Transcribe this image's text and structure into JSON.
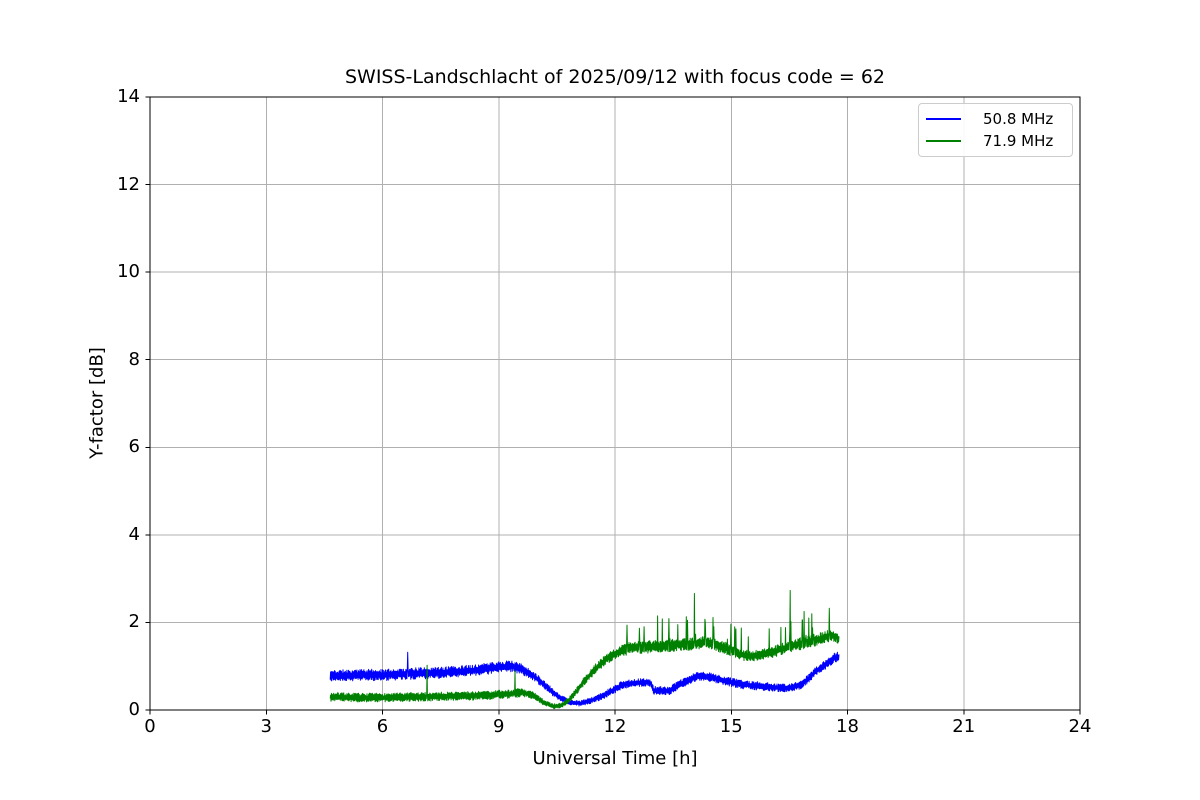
{
  "figure": {
    "background": "#ffffff"
  },
  "chart_data": {
    "type": "line",
    "title": "SWISS-Landschlacht of 2025/09/12 with focus code = 62",
    "xlabel": "Universal Time [h]",
    "ylabel": "Y-factor [dB]",
    "xlim": [
      0,
      24
    ],
    "ylim": [
      0,
      14
    ],
    "xticks": [
      0,
      3,
      6,
      9,
      12,
      15,
      18,
      21,
      24
    ],
    "yticks": [
      0,
      2,
      4,
      6,
      8,
      10,
      12,
      14
    ],
    "grid": true,
    "grid_color": "#b0b0b0",
    "axis_color": "#000000",
    "legend": {
      "position": "upper right"
    },
    "series": [
      {
        "name": "50.8 MHz",
        "color": "#0000ff",
        "seed": 11,
        "x_start": 4.65,
        "x_end": 17.78,
        "keypoints": [
          [
            4.65,
            0.78
          ],
          [
            5.0,
            0.79
          ],
          [
            5.5,
            0.8
          ],
          [
            6.0,
            0.8
          ],
          [
            6.5,
            0.82
          ],
          [
            7.0,
            0.84
          ],
          [
            7.5,
            0.85
          ],
          [
            8.0,
            0.88
          ],
          [
            8.5,
            0.92
          ],
          [
            9.0,
            0.98
          ],
          [
            9.35,
            1.0
          ],
          [
            9.6,
            0.93
          ],
          [
            9.9,
            0.78
          ],
          [
            10.2,
            0.55
          ],
          [
            10.5,
            0.33
          ],
          [
            10.8,
            0.18
          ],
          [
            11.1,
            0.15
          ],
          [
            11.4,
            0.22
          ],
          [
            11.7,
            0.33
          ],
          [
            12.0,
            0.48
          ],
          [
            12.2,
            0.58
          ],
          [
            12.5,
            0.62
          ],
          [
            12.9,
            0.63
          ],
          [
            13.0,
            0.45
          ],
          [
            13.4,
            0.44
          ],
          [
            13.6,
            0.55
          ],
          [
            13.9,
            0.68
          ],
          [
            14.15,
            0.78
          ],
          [
            14.4,
            0.76
          ],
          [
            14.7,
            0.7
          ],
          [
            15.0,
            0.63
          ],
          [
            15.3,
            0.58
          ],
          [
            15.7,
            0.55
          ],
          [
            16.1,
            0.52
          ],
          [
            16.5,
            0.5
          ],
          [
            16.8,
            0.58
          ],
          [
            17.0,
            0.72
          ],
          [
            17.2,
            0.9
          ],
          [
            17.45,
            1.05
          ],
          [
            17.65,
            1.18
          ],
          [
            17.78,
            1.22
          ]
        ],
        "noise": [
          [
            4.65,
            0.13
          ],
          [
            9.3,
            0.13
          ],
          [
            10.3,
            0.09
          ],
          [
            10.9,
            0.06
          ],
          [
            11.5,
            0.07
          ],
          [
            12.0,
            0.09
          ],
          [
            13.0,
            0.09
          ],
          [
            14.0,
            0.1
          ],
          [
            15.0,
            0.1
          ],
          [
            16.5,
            0.09
          ],
          [
            17.3,
            0.1
          ],
          [
            17.78,
            0.12
          ]
        ],
        "burst": null,
        "spikes": [
          [
            6.65,
            1.32
          ]
        ]
      },
      {
        "name": "71.9 MHz",
        "color": "#008000",
        "seed": 7,
        "x_start": 4.65,
        "x_end": 17.78,
        "keypoints": [
          [
            4.65,
            0.3
          ],
          [
            5.5,
            0.28
          ],
          [
            6.5,
            0.29
          ],
          [
            7.5,
            0.31
          ],
          [
            8.5,
            0.33
          ],
          [
            9.2,
            0.36
          ],
          [
            9.6,
            0.4
          ],
          [
            9.9,
            0.33
          ],
          [
            10.15,
            0.18
          ],
          [
            10.4,
            0.08
          ],
          [
            10.6,
            0.1
          ],
          [
            10.8,
            0.22
          ],
          [
            11.0,
            0.42
          ],
          [
            11.2,
            0.65
          ],
          [
            11.5,
            0.95
          ],
          [
            11.8,
            1.18
          ],
          [
            12.1,
            1.33
          ],
          [
            12.4,
            1.42
          ],
          [
            12.8,
            1.44
          ],
          [
            13.2,
            1.46
          ],
          [
            13.6,
            1.5
          ],
          [
            14.0,
            1.5
          ],
          [
            14.3,
            1.55
          ],
          [
            14.6,
            1.48
          ],
          [
            14.9,
            1.4
          ],
          [
            15.2,
            1.28
          ],
          [
            15.5,
            1.22
          ],
          [
            15.8,
            1.27
          ],
          [
            16.1,
            1.33
          ],
          [
            16.4,
            1.42
          ],
          [
            16.7,
            1.5
          ],
          [
            17.0,
            1.55
          ],
          [
            17.3,
            1.63
          ],
          [
            17.55,
            1.7
          ],
          [
            17.7,
            1.68
          ],
          [
            17.78,
            1.6
          ]
        ],
        "noise": [
          [
            4.65,
            0.1
          ],
          [
            9.5,
            0.1
          ],
          [
            10.2,
            0.06
          ],
          [
            10.7,
            0.06
          ],
          [
            11.2,
            0.09
          ],
          [
            11.8,
            0.12
          ],
          [
            12.4,
            0.14
          ],
          [
            13.5,
            0.15
          ],
          [
            14.8,
            0.14
          ],
          [
            15.6,
            0.12
          ],
          [
            16.3,
            0.13
          ],
          [
            17.0,
            0.14
          ],
          [
            17.78,
            0.13
          ]
        ],
        "burst": {
          "range": [
            12.3,
            17.6
          ],
          "p": 0.05,
          "max": 0.5
        },
        "spikes": [
          [
            7.15,
            1.02
          ],
          [
            9.42,
            0.9
          ],
          [
            12.75,
            1.9
          ],
          [
            13.1,
            2.15
          ],
          [
            13.22,
            2.08
          ],
          [
            13.62,
            1.95
          ],
          [
            13.87,
            2.05
          ],
          [
            14.05,
            2.66
          ],
          [
            14.33,
            2.0
          ],
          [
            14.55,
            1.9
          ],
          [
            15.12,
            1.85
          ],
          [
            16.52,
            2.73
          ],
          [
            16.88,
            2.25
          ],
          [
            17.08,
            2.2
          ]
        ]
      }
    ]
  }
}
